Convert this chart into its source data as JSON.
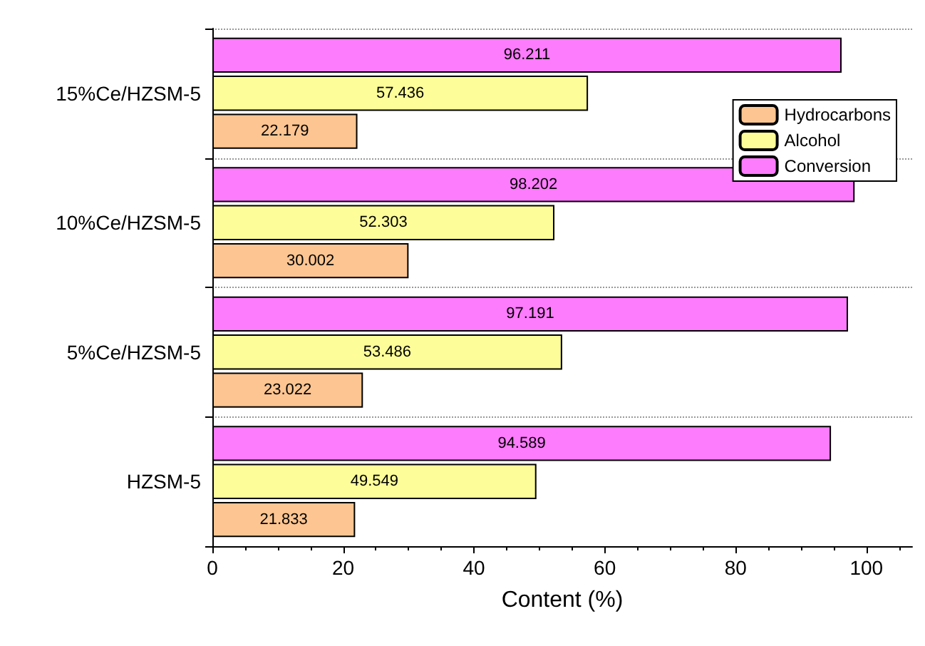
{
  "chart_data": {
    "type": "bar",
    "orientation": "horizontal",
    "xlabel": "Content (%)",
    "categories": [
      "15%Ce/HZSM-5",
      "10%Ce/HZSM-5",
      "5%Ce/HZSM-5",
      "HZSM-5"
    ],
    "series": [
      {
        "name": "Hydrocarbons",
        "color": "#fcc591",
        "values": [
          22.179,
          30.002,
          23.022,
          21.833
        ]
      },
      {
        "name": "Alcohol",
        "color": "#fdfd99",
        "values": [
          57.436,
          52.303,
          53.486,
          49.549
        ]
      },
      {
        "name": "Conversion",
        "color": "#fd7bfd",
        "values": [
          96.211,
          98.202,
          97.191,
          94.589
        ]
      }
    ],
    "xlim": [
      0,
      107
    ],
    "xticks": [
      0,
      20,
      40,
      60,
      80,
      100
    ],
    "data_labels": true,
    "legend": "top right",
    "grid": "y"
  }
}
